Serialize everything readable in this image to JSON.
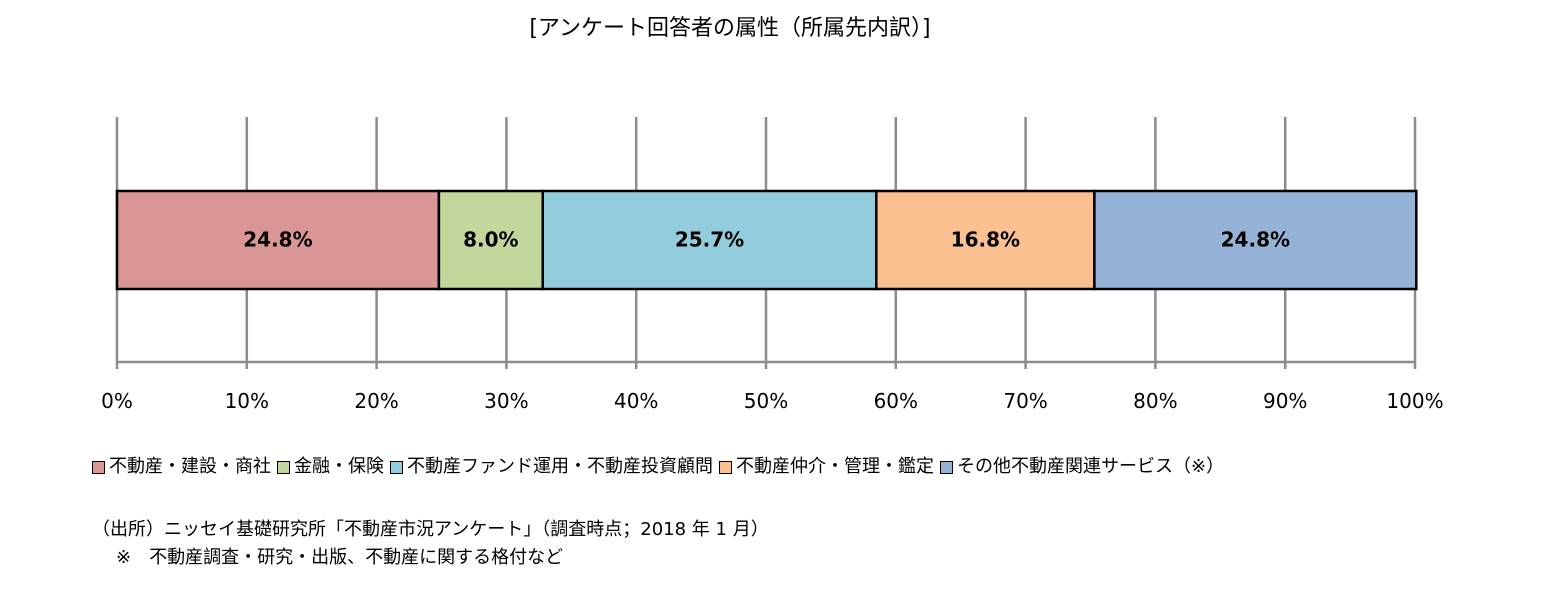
{
  "chart_data": {
    "type": "bar",
    "orientation": "horizontal",
    "stacked": "percent",
    "title": "[アンケート回答者の属性（所属先内訳）]",
    "xlim": [
      0,
      100
    ],
    "x_ticks": [
      "0%",
      "10%",
      "20%",
      "30%",
      "40%",
      "50%",
      "60%",
      "70%",
      "80%",
      "90%",
      "100%"
    ],
    "grid": true,
    "legend_position": "bottom",
    "series": [
      {
        "name": "不動産・建設・商社",
        "value": 24.8,
        "label": "24.8%",
        "color": "#d99694"
      },
      {
        "name": "金融・保険",
        "value": 8.0,
        "label": "8.0%",
        "color": "#c3d69b"
      },
      {
        "name": "不動産ファンド運用・不動産投資顧問",
        "value": 25.7,
        "label": "25.7%",
        "color": "#93cddd"
      },
      {
        "name": "不動産仲介・管理・鑑定",
        "value": 16.8,
        "label": "16.8%",
        "color": "#fac090"
      },
      {
        "name": "その他不動産関連サービス（※）",
        "value": 24.8,
        "label": "24.8%",
        "color": "#95b3d7"
      }
    ]
  },
  "source": {
    "citation": "（出所）ニッセイ基礎研究所「不動産市況アンケート」（調査時点；2018 年 1 月）",
    "note": "※　不動産調査・研究・出版、不動産に関する格付など"
  }
}
